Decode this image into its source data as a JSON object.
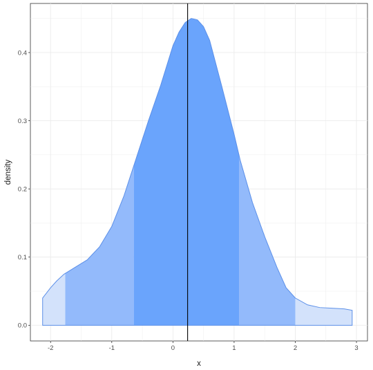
{
  "chart_data": {
    "type": "area",
    "title": "",
    "xlabel": "x",
    "ylabel": "density",
    "xlim": [
      -2.33,
      3.18
    ],
    "ylim": [
      -0.023,
      0.472
    ],
    "x_ticks": [
      -2,
      -1,
      0,
      1,
      2,
      3
    ],
    "y_ticks": [
      0.0,
      0.1,
      0.2,
      0.3,
      0.4
    ],
    "x_tick_labels": [
      "-2",
      "-1",
      "0",
      "1",
      "2",
      "3"
    ],
    "y_tick_labels": [
      "0.0",
      "0.1",
      "0.2",
      "0.3",
      "0.4"
    ],
    "grid": true,
    "vertical_line_x": 0.24,
    "density": {
      "x": [
        -2.13,
        -2.0,
        -1.9,
        -1.78,
        -1.6,
        -1.4,
        -1.2,
        -1.0,
        -0.8,
        -0.6,
        -0.4,
        -0.2,
        0.0,
        0.1,
        0.2,
        0.3,
        0.4,
        0.5,
        0.6,
        0.8,
        1.0,
        1.1,
        1.3,
        1.5,
        1.7,
        1.85,
        2.0,
        2.2,
        2.4,
        2.6,
        2.8,
        2.93
      ],
      "y": [
        0.04,
        0.055,
        0.065,
        0.075,
        0.085,
        0.096,
        0.115,
        0.145,
        0.19,
        0.245,
        0.3,
        0.352,
        0.41,
        0.43,
        0.444,
        0.45,
        0.448,
        0.438,
        0.418,
        0.35,
        0.28,
        0.242,
        0.18,
        0.13,
        0.085,
        0.055,
        0.04,
        0.03,
        0.026,
        0.025,
        0.024,
        0.022
      ]
    },
    "bands": [
      {
        "from": -2.13,
        "to": -1.76,
        "color": "#d3e2fb"
      },
      {
        "from": -1.76,
        "to": -0.64,
        "color": "#93bafb"
      },
      {
        "from": -0.64,
        "to": 1.08,
        "color": "#6aa4fc"
      },
      {
        "from": 1.08,
        "to": 2.0,
        "color": "#93bafb"
      },
      {
        "from": 2.0,
        "to": 2.93,
        "color": "#d3e2fb"
      }
    ],
    "outline_color": "#5b8fe8"
  }
}
